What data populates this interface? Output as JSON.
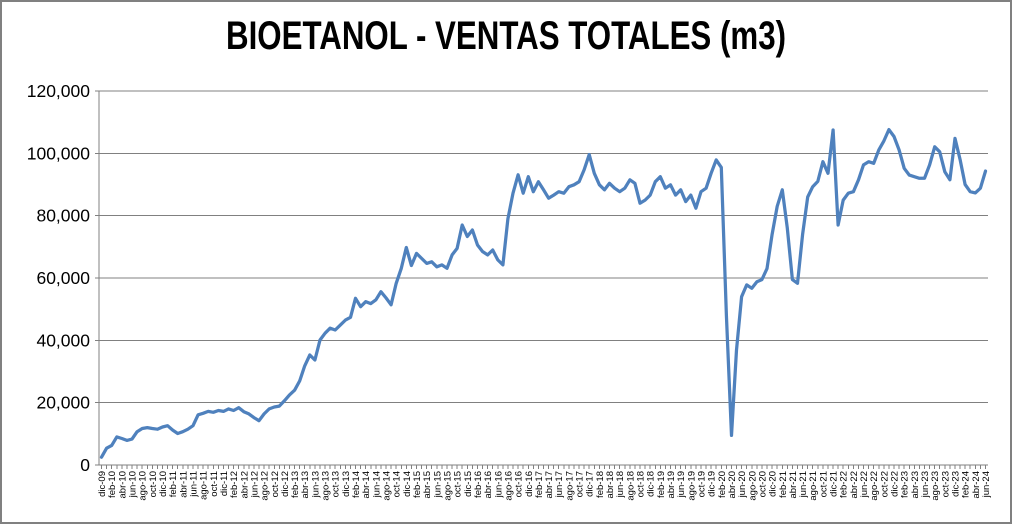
{
  "chart_data": {
    "type": "line",
    "title": "BIOETANOL - VENTAS TOTALES (m3)",
    "xlabel": "",
    "ylabel": "",
    "ylim": [
      0,
      120000
    ],
    "grid": true,
    "legend": "none",
    "line_color": "#4F81BD",
    "grid_color": "#808080",
    "axis_color": "#808080",
    "text_color": "#000000",
    "border_color": "#808080",
    "y_tick_values": [
      0,
      20000,
      40000,
      60000,
      80000,
      100000,
      120000
    ],
    "y_tick_labels": [
      "0",
      "20,000",
      "40,000",
      "60,000",
      "80,000",
      "100,000",
      "120,000"
    ],
    "x_label_every": 2,
    "x_tick_labels": [
      "dic-09",
      "feb-10",
      "abr-10",
      "jun-10",
      "ago-10",
      "oct-10",
      "dic-10",
      "feb-11",
      "abr-11",
      "jun-11",
      "ago-11",
      "oct-11",
      "dic-11",
      "feb-12",
      "abr-12",
      "jun-12",
      "ago-12",
      "oct-12",
      "dic-12",
      "feb-13",
      "abr-13",
      "jun-13",
      "ago-13",
      "oct-13",
      "dic-13",
      "feb-14",
      "abr-14",
      "jun-14",
      "ago-14",
      "oct-14",
      "dic-14",
      "feb-15",
      "abr-15",
      "jun-15",
      "ago-15",
      "oct-15",
      "dic-15",
      "feb-16",
      "abr-16",
      "jun-16",
      "ago-16",
      "oct-16",
      "dic-16",
      "feb-17",
      "abr-17",
      "jun-17",
      "ago-17",
      "oct-17",
      "dic-17",
      "feb-18",
      "abr-18",
      "jun-18",
      "ago-18",
      "oct-18",
      "dic-18",
      "feb-19",
      "abr-19",
      "jun-19",
      "ago-19",
      "oct-19",
      "dic-19",
      "feb-20",
      "abr-20",
      "jun-20",
      "ago-20",
      "oct-20",
      "dic-20",
      "feb-21",
      "abr-21",
      "jun-21",
      "ago-21",
      "oct-21",
      "dic-21",
      "feb-22",
      "abr-22",
      "jun-22",
      "ago-22",
      "oct-22",
      "dic-22",
      "feb-23",
      "abr-23",
      "jun-23",
      "ago-23",
      "oct-23",
      "dic-23",
      "feb-24",
      "abr-24",
      "jun-24"
    ],
    "values": [
      2500,
      5400,
      6300,
      9000,
      8500,
      7900,
      8300,
      10700,
      11700,
      12000,
      11700,
      11500,
      12200,
      12600,
      11200,
      10100,
      10700,
      11500,
      12600,
      16100,
      16600,
      17200,
      16900,
      17500,
      17200,
      18000,
      17500,
      18400,
      17100,
      16400,
      15200,
      14200,
      16400,
      18000,
      18600,
      18900,
      20600,
      22500,
      24000,
      27000,
      31800,
      35300,
      33700,
      40100,
      42300,
      43900,
      43300,
      44900,
      46500,
      47400,
      53500,
      50800,
      52400,
      51800,
      53000,
      55600,
      53600,
      51400,
      58300,
      63100,
      69800,
      64000,
      67900,
      66300,
      64700,
      65200,
      63600,
      64200,
      63100,
      67400,
      69500,
      77000,
      73300,
      75400,
      70600,
      68500,
      67400,
      69000,
      65800,
      64200,
      79000,
      87200,
      93100,
      87200,
      92500,
      87700,
      90900,
      88300,
      85600,
      86600,
      87700,
      87200,
      89300,
      89900,
      90900,
      94700,
      99600,
      93600,
      89900,
      88300,
      90400,
      88800,
      87700,
      88800,
      91500,
      90400,
      84000,
      85000,
      86600,
      90900,
      92500,
      88800,
      89900,
      86600,
      88300,
      84500,
      86600,
      82400,
      87700,
      88800,
      93600,
      97900,
      95500,
      48000,
      9500,
      36900,
      54000,
      57800,
      56700,
      58800,
      59500,
      63000,
      74000,
      83000,
      88300,
      76000,
      59500,
      58300,
      74000,
      86000,
      89300,
      91000,
      97300,
      93600,
      107500,
      77000,
      85000,
      87200,
      87700,
      91500,
      96300,
      97300,
      96800,
      101100,
      104000,
      107600,
      105400,
      101100,
      95200,
      93000,
      92500,
      92000,
      92000,
      96300,
      102100,
      100500,
      94100,
      91500,
      104800,
      98000,
      90000,
      87700,
      87300,
      88800,
      94300
    ]
  }
}
